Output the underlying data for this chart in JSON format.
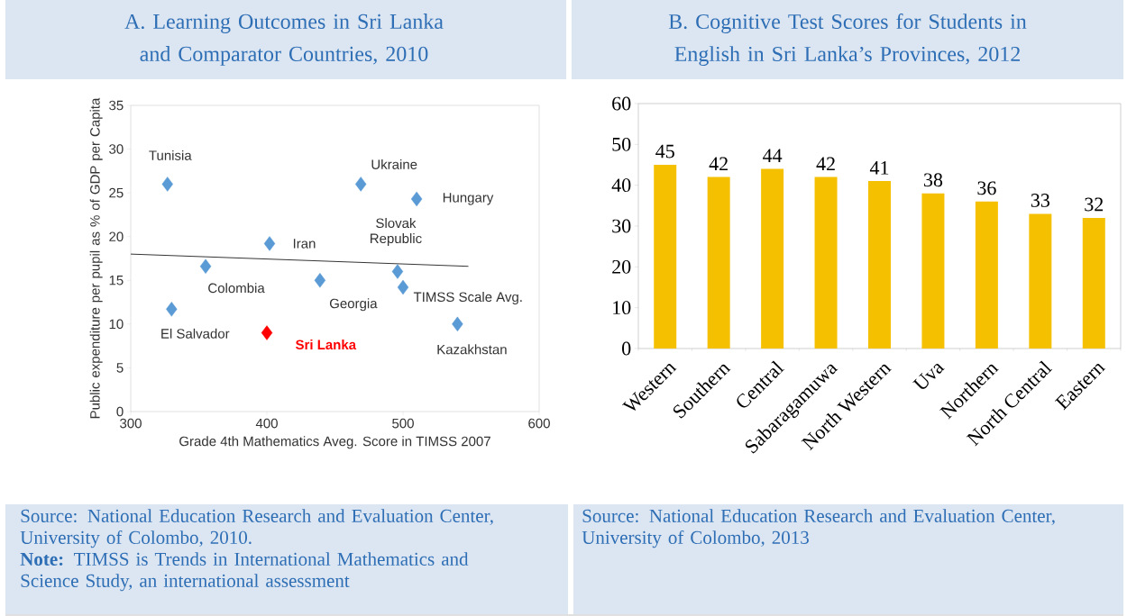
{
  "chart_data": [
    {
      "type": "scatter",
      "title": "A. Learning Outcomes in Sri Lanka and Comparator Countries, 2010",
      "xlabel": "Grade 4th Mathematics Aveg. Score in TIMSS 2007",
      "ylabel": "Public expenditure per pupil as % of GDP per Capita",
      "marker": "diamond",
      "grid": false,
      "xlim": [
        300,
        600
      ],
      "xticks": [
        300,
        400,
        500,
        600
      ],
      "ylim": [
        0,
        35
      ],
      "yticks": [
        0,
        5,
        10,
        15,
        20,
        25,
        30,
        35
      ],
      "series": [
        {
          "color": "#5b9bd5",
          "x": [
            327,
            469,
            510,
            402,
            355,
            439,
            496,
            500,
            330,
            540
          ],
          "values": [
            26,
            26,
            24.3,
            19.2,
            16.6,
            15,
            16,
            14.2,
            11.7,
            10
          ]
        },
        {
          "name": "Sri Lanka",
          "color": "#ff0000",
          "x": [
            400
          ],
          "values": [
            9
          ]
        },
        {
          "type": "line",
          "marker": "none",
          "color": "#000000",
          "x": [
            300,
            548
          ],
          "values": [
            18,
            16.6
          ]
        }
      ],
      "annotations": [
        {
          "text": "Tunisia",
          "x": 327,
          "y": 26
        },
        {
          "text": "Ukraine",
          "x": 469,
          "y": 26
        },
        {
          "text": "Hungary",
          "x": 510,
          "y": 24.3
        },
        {
          "text": "Iran",
          "x": 402,
          "y": 19.2
        },
        {
          "text": "Colombia",
          "x": 355,
          "y": 16.6
        },
        {
          "text": "Georgia",
          "x": 439,
          "y": 15
        },
        {
          "text": "Slovak Republic",
          "x": 496,
          "y": 16
        },
        {
          "text": "TIMSS Scale Avg.",
          "x": 500,
          "y": 14.2
        },
        {
          "text": "El Salvador",
          "x": 330,
          "y": 11.7
        },
        {
          "text": "Kazakhstan",
          "x": 540,
          "y": 10
        },
        "Source: National Education Research and Evaluation Center, University of Colombo, 2010.",
        "**Note:** TIMSS is Trends in International Mathematics and Science Study, an international assessment"
      ]
    },
    {
      "type": "bar",
      "title": "B. Cognitive Test Scores for Students in English in Sri Lanka’s Provinces, 2012",
      "color": "#f5c000",
      "data_labels": true,
      "grid": false,
      "categories": [
        "Western",
        "Southern",
        "Central",
        "Sabaragamuwa",
        "North Western",
        "Uva",
        "Northern",
        "North Central",
        "Eastern"
      ],
      "values": [
        45,
        42,
        44,
        42,
        41,
        38,
        36,
        33,
        32
      ],
      "ylim": [
        0,
        60
      ],
      "yticks": [
        0,
        10,
        20,
        30,
        40,
        50,
        60
      ],
      "annotations": [
        "Source: National Education Research and Evaluation Center, University of Colombo, 2013"
      ]
    }
  ]
}
